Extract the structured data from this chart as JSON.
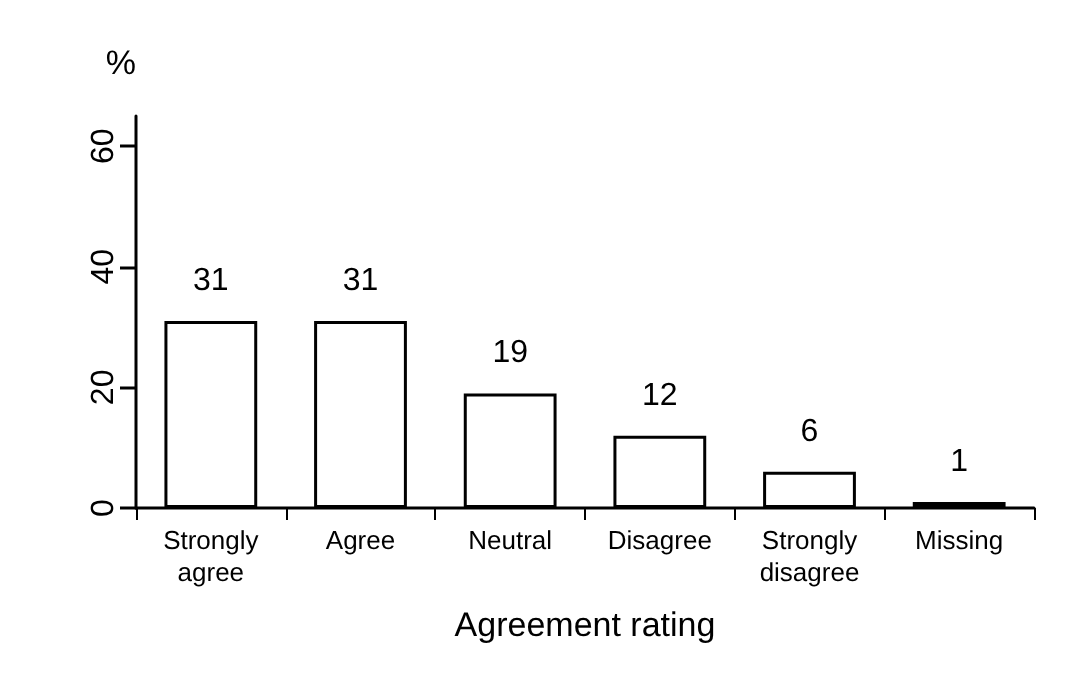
{
  "chart_data": {
    "type": "bar",
    "xlabel": "Agreement rating",
    "ylabel": "%",
    "categories": [
      "Strongly\nagree",
      "Agree",
      "Neutral",
      "Disagree",
      "Strongly\ndisagree",
      "Missing"
    ],
    "values": [
      31,
      31,
      19,
      12,
      6,
      1
    ],
    "color": "#ffffff",
    "ylim": [
      0,
      65
    ],
    "yticks": [
      0,
      20,
      40,
      60
    ],
    "grid": false,
    "data_labels": true
  }
}
